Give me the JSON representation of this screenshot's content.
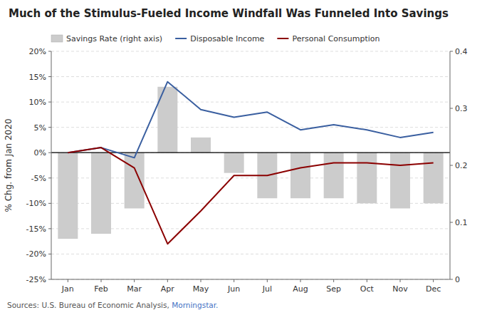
{
  "chart_data": {
    "type": "bar",
    "title": "Much of the Stimulus-Fueled Income Windfall Was Funneled Into Savings",
    "categories": [
      "Jan",
      "Feb",
      "Mar",
      "Apr",
      "May",
      "Jun",
      "Jul",
      "Aug",
      "Sep",
      "Oct",
      "Nov",
      "Dec"
    ],
    "series": [
      {
        "name": "Savings Rate (right axis)",
        "type": "bar",
        "color": "#cccccc",
        "values": [
          -17,
          -16,
          -11,
          13,
          3,
          -4,
          -9,
          -9,
          -9,
          -10,
          -11,
          -10
        ]
      },
      {
        "name": "Disposable Income",
        "type": "line",
        "color": "#3a5fa0",
        "values": [
          0,
          1,
          -1,
          14,
          8.5,
          7,
          8,
          4.5,
          5.5,
          4.5,
          3,
          4
        ]
      },
      {
        "name": "Personal Consumption",
        "type": "line",
        "color": "#8b0000",
        "values": [
          0,
          1,
          -3,
          -18,
          -11.5,
          -4.5,
          -4.5,
          -3,
          -2,
          -2,
          -2.5,
          -2
        ]
      }
    ],
    "y_label": "% Chg. from Jan 2020",
    "ylim": [
      -25,
      20
    ],
    "yticks": [
      {
        "value": -25,
        "label": "-25%"
      },
      {
        "value": -20,
        "label": "-20%"
      },
      {
        "value": -15,
        "label": "-15%"
      },
      {
        "value": -10,
        "label": "-10%"
      },
      {
        "value": -5,
        "label": "-5%"
      },
      {
        "value": 0,
        "label": "0%"
      },
      {
        "value": 5,
        "label": "5%"
      },
      {
        "value": 10,
        "label": "10%"
      },
      {
        "value": 15,
        "label": "15%"
      },
      {
        "value": 20,
        "label": "20%"
      }
    ],
    "y2lim": [
      0,
      0.4
    ],
    "y2ticks": [
      0,
      0.1,
      0.2,
      0.3,
      0.4
    ],
    "grid": true,
    "legend": "upper left",
    "annotations": [
      {
        "text": "Sources: U.S. Bureau of Economic Analysis, ",
        "color": "#555555"
      },
      {
        "text": "Morningstar.",
        "color": "#4472c4"
      }
    ]
  }
}
